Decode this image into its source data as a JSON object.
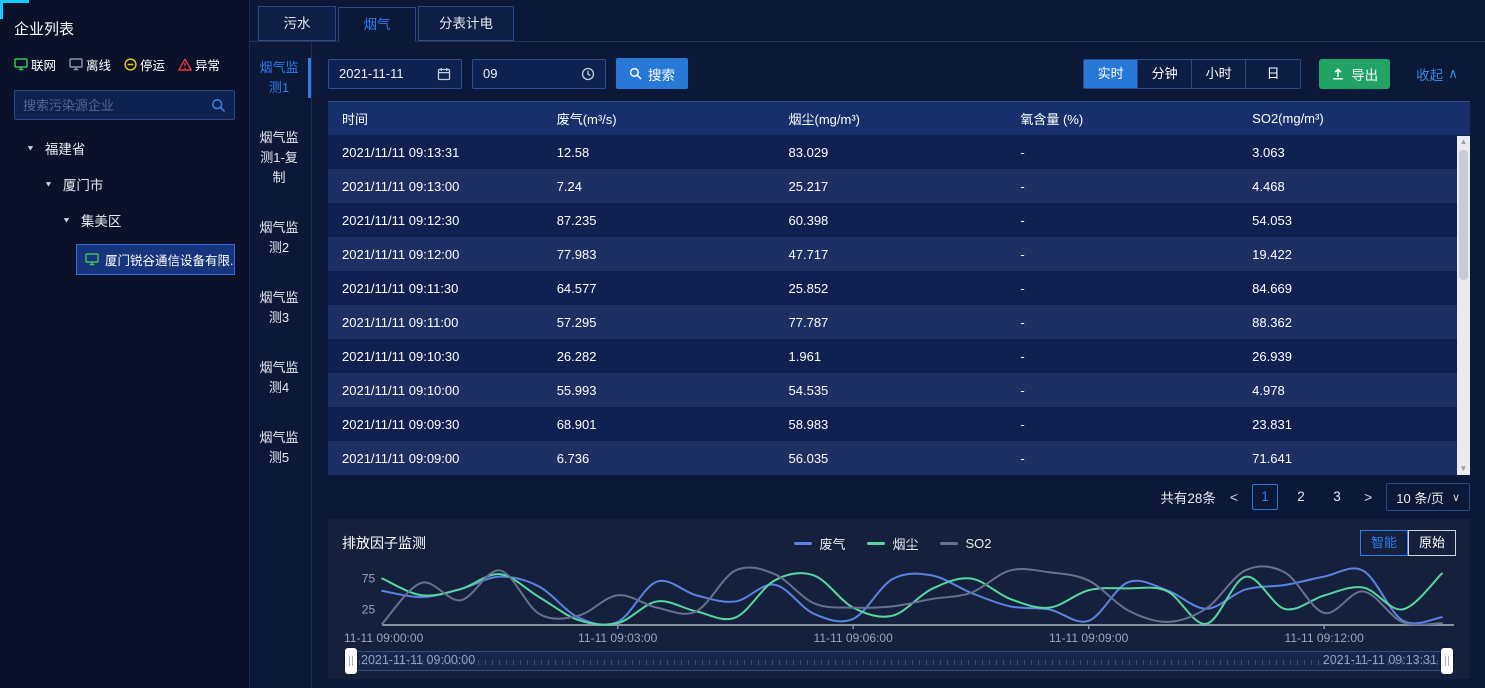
{
  "colors": {
    "accent_blue": "#2d7ff0",
    "export_green": "#21a366",
    "status_online": "#3fbf57",
    "status_offline": "#8a93a6",
    "status_stopped": "#e6c619",
    "status_abnormal": "#e23c3c",
    "series_gas": "#5b83e3",
    "series_dust": "#57d7a0",
    "series_so2": "#66718f",
    "corner_accent": "#19c8ff"
  },
  "icons": {
    "collapse": "∧",
    "dropdown": "∨",
    "prev": "<",
    "next": ">",
    "caret-down": "▼",
    "scroll-up": "▲",
    "scroll-down": "▼"
  },
  "sidebar": {
    "title": "企业列表",
    "legend": [
      {
        "label": "联网",
        "type": "online",
        "color": "#3fbf57"
      },
      {
        "label": "离线",
        "type": "offline",
        "color": "#8a93a6"
      },
      {
        "label": "停运",
        "type": "stopped",
        "color": "#e6c619"
      },
      {
        "label": "异常",
        "type": "abnormal",
        "color": "#e23c3c"
      }
    ],
    "search_placeholder": "搜索污染源企业",
    "tree": {
      "province": "福建省",
      "city": "厦门市",
      "district": "集美区",
      "company": "厦门锐谷通信设备有限..."
    }
  },
  "tabs": {
    "items": [
      {
        "label": "污水",
        "active": false
      },
      {
        "label": "烟气",
        "active": true
      },
      {
        "label": "分表计电",
        "active": false
      }
    ]
  },
  "vtabs": {
    "items": [
      {
        "label": "烟气监测1",
        "active": true
      },
      {
        "label": "烟气监测1-复制",
        "active": false
      },
      {
        "label": "烟气监测2",
        "active": false
      },
      {
        "label": "烟气监测3",
        "active": false
      },
      {
        "label": "烟气监测4",
        "active": false
      },
      {
        "label": "烟气监测5",
        "active": false
      }
    ]
  },
  "toolbar": {
    "date_value": "2021-11-11",
    "time_value": "09",
    "search_label": "搜索",
    "range_buttons": [
      {
        "label": "实时",
        "active": true
      },
      {
        "label": "分钟",
        "active": false
      },
      {
        "label": "小时",
        "active": false
      },
      {
        "label": "日",
        "active": false
      }
    ],
    "export_label": "导出",
    "collapse_label": "收起"
  },
  "table": {
    "columns": [
      "时间",
      "废气(m³/s)",
      "烟尘(mg/m³)",
      "氧含量 (%)",
      "SO2(mg/m³)"
    ],
    "rows": [
      [
        "2021/11/11 09:13:31",
        "12.58",
        "83.029",
        "-",
        "3.063"
      ],
      [
        "2021/11/11 09:13:00",
        "7.24",
        "25.217",
        "-",
        "4.468"
      ],
      [
        "2021/11/11 09:12:30",
        "87.235",
        "60.398",
        "-",
        "54.053"
      ],
      [
        "2021/11/11 09:12:00",
        "77.983",
        "47.717",
        "-",
        "19.422"
      ],
      [
        "2021/11/11 09:11:30",
        "64.577",
        "25.852",
        "-",
        "84.669"
      ],
      [
        "2021/11/11 09:11:00",
        "57.295",
        "77.787",
        "-",
        "88.362"
      ],
      [
        "2021/11/11 09:10:30",
        "26.282",
        "1.961",
        "-",
        "26.939"
      ],
      [
        "2021/11/11 09:10:00",
        "55.993",
        "54.535",
        "-",
        "4.978"
      ],
      [
        "2021/11/11 09:09:30",
        "68.901",
        "58.983",
        "-",
        "23.831"
      ],
      [
        "2021/11/11 09:09:00",
        "6.736",
        "56.035",
        "-",
        "71.641"
      ]
    ]
  },
  "pagination": {
    "total": "共有28条",
    "pages": [
      "1",
      "2",
      "3"
    ],
    "active_page": "1",
    "page_size": "10 条/页"
  },
  "chart": {
    "title": "排放因子监测",
    "mode_buttons": [
      {
        "label": "智能",
        "active": true
      },
      {
        "label": "原始",
        "active": false
      }
    ],
    "slider": {
      "start": "2021-11-11 09:00:00",
      "end": "2021-11-11 09:13:31"
    }
  },
  "chart_data": {
    "type": "line",
    "title": "排放因子监测",
    "x": [
      "09:00:00",
      "09:00:30",
      "09:01:00",
      "09:01:30",
      "09:02:00",
      "09:02:30",
      "09:03:00",
      "09:03:30",
      "09:04:00",
      "09:04:30",
      "09:05:00",
      "09:05:30",
      "09:06:00",
      "09:06:30",
      "09:07:00",
      "09:07:30",
      "09:08:00",
      "09:08:30",
      "09:09:00",
      "09:09:30",
      "09:10:00",
      "09:10:30",
      "09:11:00",
      "09:11:30",
      "09:12:00",
      "09:12:30",
      "09:13:00",
      "09:13:31"
    ],
    "x_tick_labels": [
      "11-11 09:00:00",
      "11-11 09:03:00",
      "11-11 09:06:00",
      "11-11 09:09:00",
      "11-11 09:12:00"
    ],
    "x_tick_indices": [
      0,
      6,
      12,
      18,
      24
    ],
    "y_ticks": [
      25,
      75
    ],
    "ylim": [
      0,
      100
    ],
    "grid": false,
    "legend_position": "top-center",
    "series": [
      {
        "name": "废气",
        "color": "#5b83e3",
        "values": [
          55,
          45,
          58,
          78,
          62,
          12,
          5,
          70,
          48,
          38,
          65,
          18,
          10,
          74,
          80,
          52,
          30,
          25,
          6.736,
          68.901,
          55.993,
          26.282,
          57.295,
          64.577,
          77.983,
          87.235,
          7.24,
          12.58
        ]
      },
      {
        "name": "烟尘",
        "color": "#57d7a0",
        "values": [
          75,
          48,
          58,
          82,
          45,
          8,
          3,
          38,
          22,
          12,
          72,
          80,
          28,
          15,
          58,
          75,
          42,
          28,
          56.035,
          58.983,
          54.535,
          1.961,
          77.787,
          25.852,
          47.717,
          60.398,
          25.217,
          83.029
        ]
      },
      {
        "name": "SO2",
        "color": "#66718f",
        "values": [
          2,
          68,
          40,
          88,
          18,
          15,
          48,
          28,
          22,
          88,
          82,
          35,
          28,
          30,
          42,
          52,
          88,
          85,
          71.641,
          23.831,
          4.978,
          26.939,
          88.362,
          84.669,
          19.422,
          54.053,
          4.468,
          3.063
        ]
      }
    ]
  }
}
